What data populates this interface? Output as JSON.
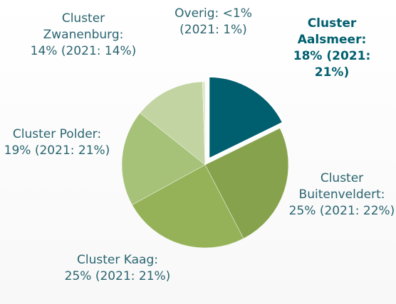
{
  "chart_data": {
    "type": "pie",
    "labels": [
      "Cluster Aalsmeer: 18% (2021: 21%)",
      "Cluster Buitenveldert: 25% (2021: 22%)",
      "Cluster Kaag: 25% (2021: 21%)",
      "Cluster Polder: 19% (2021: 21%)",
      "Cluster Zwanenburg: 14% (2021: 14%)",
      "Overig: <1% (2021: 1%)"
    ],
    "values": [
      18,
      25,
      25,
      19,
      14,
      0.5
    ],
    "colors": [
      "#005f6e",
      "#87a24c",
      "#95b259",
      "#a6c278",
      "#c2d4a2",
      "#dbe6c6"
    ],
    "exploded": [
      true,
      false,
      false,
      false,
      false,
      false
    ]
  }
}
